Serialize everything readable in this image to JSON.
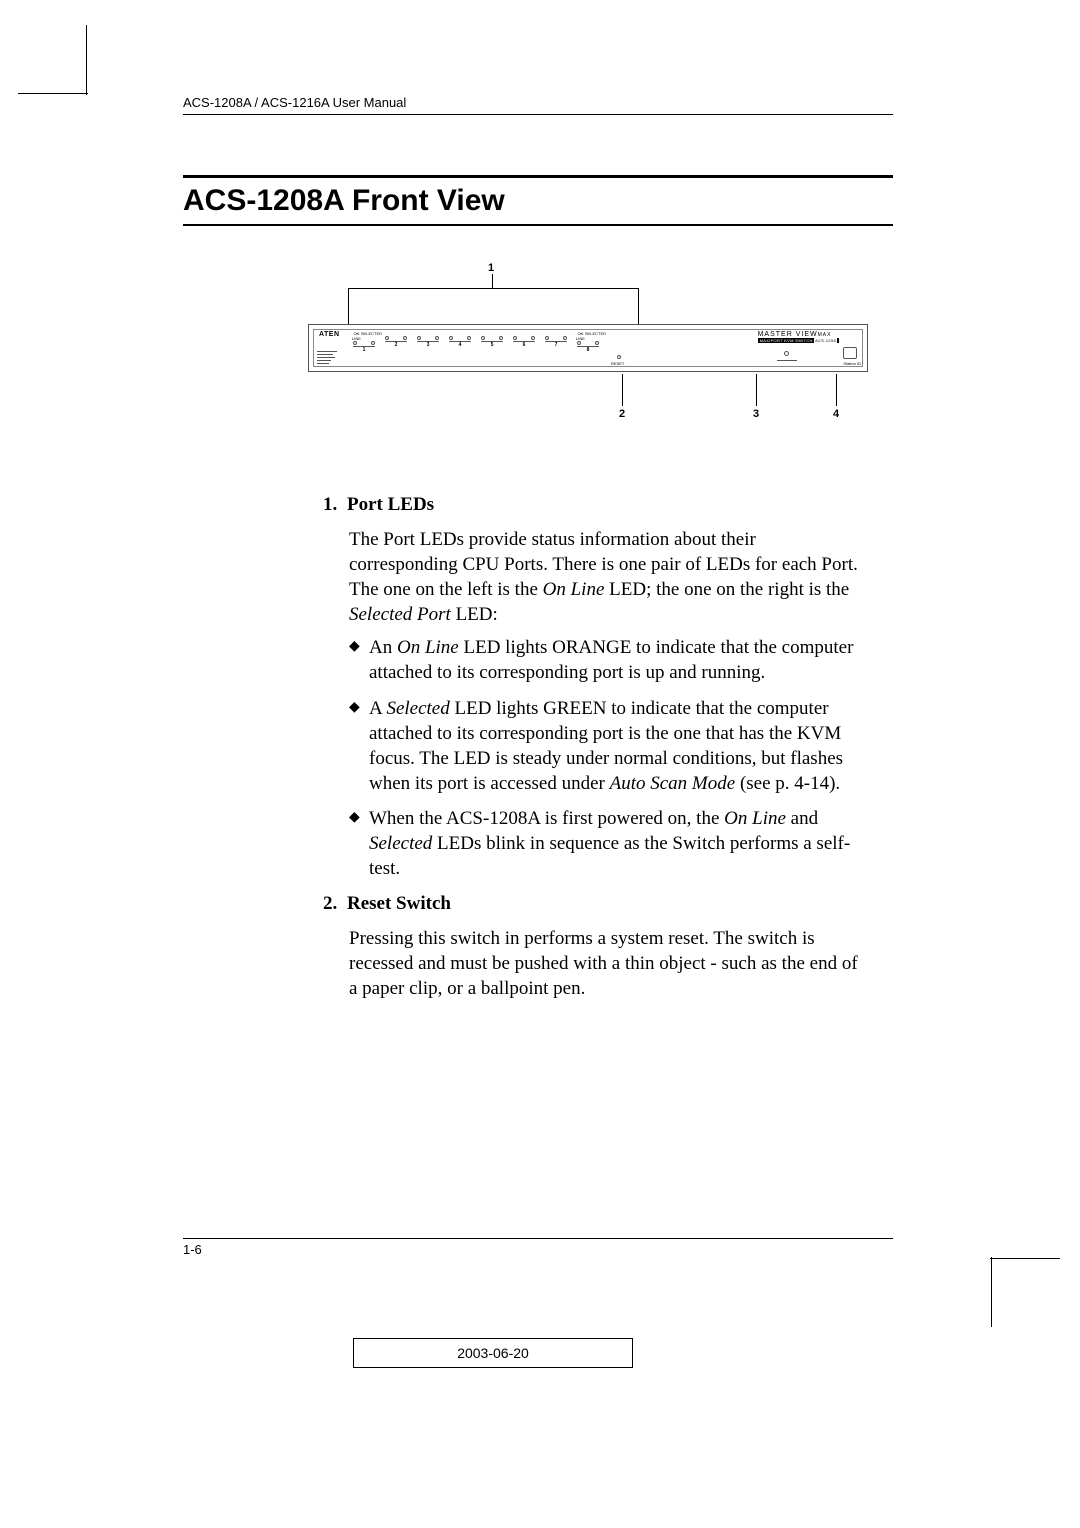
{
  "header": {
    "running_title": "ACS-1208A / ACS-1216A User Manual"
  },
  "title": "ACS-1208A Front View",
  "diagram": {
    "callouts": {
      "c1": "1",
      "c2": "2",
      "c3": "3",
      "c4": "4"
    },
    "brand": "ATEN",
    "port_header_left": "ON LINE",
    "port_header_right": "SELECTED",
    "port_numbers": [
      "1",
      "2",
      "3",
      "4",
      "5",
      "6",
      "7",
      "8"
    ],
    "reset_label": "RESET",
    "masterview_top": "MASTER VIEW",
    "masterview_suffix": "MAX",
    "masterview_sub_left": "MAXIPORT KVM SWITCH",
    "masterview_sub_right": "ACS-1208",
    "station_id_label": "Station ID",
    "colors": {
      "frame": "#555555",
      "background": "#ffffff",
      "text": "#000000"
    }
  },
  "sections": [
    {
      "number": "1.",
      "heading": "Port LEDs",
      "paragraph": "The Port LEDs provide status information about their corresponding CPU Ports. There is one pair of LEDs for each Port. The one on the left is the On Line LED; the one on the right is the Selected Port LED:",
      "paragraph_html": "The Port LEDs provide status information about their corresponding CPU Ports. There is one pair of LEDs for each Port. The one on the left is the <span class='it'>On Line</span> LED; the one on the right is the <span class='it'>Selected Port</span> LED:",
      "bullets": [
        "An <span class='it'>On Line</span> LED lights ORANGE to indicate that the computer attached to its corresponding port is up and running.",
        "A <span class='it'>Selected</span> LED lights GREEN to indicate that the computer attached to its corresponding port is the one that has the KVM focus. The LED is steady under normal conditions, but flashes when its port is accessed under <span class='it'>Auto Scan Mode</span> (see p. 4-14).",
        "When the ACS-1208A is first powered on, the <span class='it'>On Line</span> and <span class='it'>Selected</span> LEDs blink in sequence as the Switch performs a self-test."
      ]
    },
    {
      "number": "2.",
      "heading": "Reset Switch",
      "paragraph": "Pressing this switch in performs a system reset. The switch is recessed and must be pushed with a thin object - such as the end of a paper clip, or a ballpoint pen."
    }
  ],
  "footer": {
    "page_number": "1-6",
    "date": "2003-06-20"
  }
}
